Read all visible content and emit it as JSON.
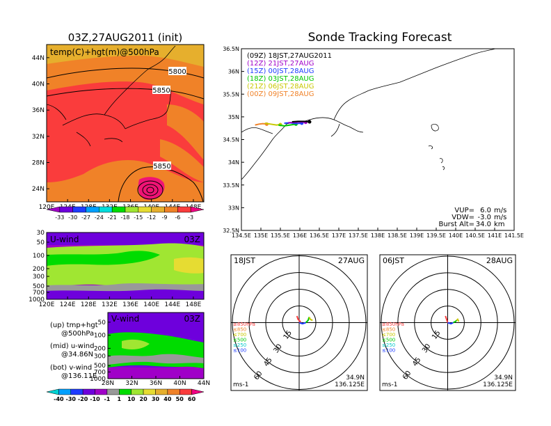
{
  "figure": {
    "title_init": "03Z,27AUG2011 (init)",
    "title_main": "Sonde Tracking Forecast"
  },
  "chart_data": [
    {
      "id": "temp-map",
      "type": "heatmap",
      "panel_label": "temp(C)+hgt(m)@500hPa",
      "x_ticks": [
        "120E",
        "124E",
        "128E",
        "132E",
        "136E",
        "140E",
        "144E",
        "148E"
      ],
      "y_ticks": [
        "24N",
        "28N",
        "32N",
        "36N",
        "40N",
        "44N"
      ],
      "xlim": [
        120,
        150
      ],
      "ylim": [
        22,
        46
      ],
      "contour_labels": [
        "5800",
        "5850",
        "5850"
      ],
      "colorbar": {
        "levels": [
          -33,
          -30,
          -27,
          -24,
          -21,
          -18,
          -15,
          -12,
          -9,
          -6,
          -3
        ],
        "tick_labels": [
          "-33",
          "-30",
          "-27",
          "-24",
          "-21",
          "-18",
          "-15",
          "-12",
          "-9",
          "-6",
          "-3"
        ],
        "colors": [
          "#a000c8",
          "#6e00dc",
          "#1e3cff",
          "#00a0ff",
          "#00dcdc",
          "#00dc00",
          "#a0e632",
          "#e6dc32",
          "#e6af2d",
          "#f08228",
          "#fa3c3c",
          "#f00082"
        ]
      }
    },
    {
      "id": "u-wind",
      "type": "heatmap",
      "panel_label": "U-wind",
      "time_label": "03Z",
      "x_ticks": [
        "120E",
        "124E",
        "128E",
        "132E",
        "136E",
        "140E",
        "144E",
        "148E"
      ],
      "y_ticks": [
        "30",
        "50",
        "100",
        "200",
        "300",
        "500",
        "700",
        "1000"
      ],
      "xlim": [
        120,
        150
      ],
      "ylim": [
        1000,
        30
      ],
      "y_scale": "log"
    },
    {
      "id": "v-wind",
      "type": "heatmap",
      "panel_label": "V-wind",
      "time_label": "03Z",
      "x_ticks": [
        "28N",
        "32N",
        "36N",
        "40N",
        "44N"
      ],
      "y_ticks": [
        "50",
        "100",
        "200",
        "300",
        "500",
        "700",
        "1000"
      ],
      "xlim": [
        28,
        44
      ],
      "ylim": [
        1000,
        30
      ],
      "y_scale": "log",
      "colorbar": {
        "tick_labels": [
          "-40",
          "-30",
          "-20",
          "-10",
          "-1",
          "1",
          "10",
          "20",
          "30",
          "40",
          "50",
          "60"
        ],
        "colors": [
          "#00d2d2",
          "#00a0ff",
          "#1e3cff",
          "#6e00dc",
          "#a000c8",
          "#999999",
          "#00dc00",
          "#a0e632",
          "#e6dc32",
          "#e6af2d",
          "#f08228",
          "#fa3c3c",
          "#f00082"
        ]
      }
    },
    {
      "id": "track-map",
      "type": "line",
      "x_ticks": [
        "134.5E",
        "135E",
        "135.5E",
        "136E",
        "136.5E",
        "137E",
        "137.5E",
        "138E",
        "138.5E",
        "139E",
        "139.5E",
        "140E",
        "140.5E",
        "141E",
        "141.5E"
      ],
      "y_ticks": [
        "32.5N",
        "33N",
        "33.5N",
        "34N",
        "34.5N",
        "35N",
        "35.5N",
        "36N",
        "36.5N"
      ],
      "xlim": [
        134.5,
        141.5
      ],
      "ylim": [
        32.5,
        36.5
      ],
      "legend": [
        {
          "label": "(09Z)  18JST,27AUG2011",
          "color": "#000000"
        },
        {
          "label": "(12Z)  21JST,27AUG",
          "color": "#a000c8"
        },
        {
          "label": "(15Z)  00JST,28AUG",
          "color": "#1e3cff"
        },
        {
          "label": "(18Z)  03JST,28AUG",
          "color": "#00c800"
        },
        {
          "label": "(21Z)  06JST,28AUG",
          "color": "#c8c800"
        },
        {
          "label": "(00Z)  09JST,28AUG",
          "color": "#f08228"
        }
      ],
      "series": [
        {
          "color": "#f08228",
          "x": [
            134.85,
            134.95,
            135.05,
            135.15
          ],
          "y": [
            34.82,
            34.84,
            34.85,
            34.84
          ]
        },
        {
          "color": "#c8c800",
          "x": [
            135.1,
            135.25,
            135.4,
            135.5
          ],
          "y": [
            34.86,
            34.84,
            34.82,
            34.83
          ]
        },
        {
          "color": "#00c800",
          "x": [
            135.45,
            135.6,
            135.75,
            135.9
          ],
          "y": [
            34.82,
            34.8,
            34.82,
            34.84
          ]
        },
        {
          "color": "#1e3cff",
          "x": [
            135.6,
            135.75,
            135.9,
            136.05
          ],
          "y": [
            34.86,
            34.87,
            34.85,
            34.86
          ]
        },
        {
          "color": "#a000c8",
          "x": [
            135.7,
            135.85,
            136.0,
            136.15
          ],
          "y": [
            34.87,
            34.88,
            34.89,
            34.88
          ]
        },
        {
          "color": "#000000",
          "x": [
            135.8,
            135.95,
            136.1,
            136.25
          ],
          "y": [
            34.89,
            34.9,
            34.9,
            34.89
          ]
        }
      ],
      "params": [
        {
          "label": "VUP=",
          "value": "6.0",
          "unit": "m/s"
        },
        {
          "label": "VDW=",
          "value": "-3.0",
          "unit": "m/s"
        },
        {
          "label": "Burst Alt=",
          "value": "34.0",
          "unit": "km"
        }
      ]
    },
    {
      "id": "hodo-1",
      "type": "line",
      "time_label": "18JST",
      "date_label": "27AUG",
      "ring_labels": [
        "15",
        "30",
        "45",
        "60"
      ],
      "legend": [
        {
          "label": "≥850hPa",
          "color": "#fa3c3c"
        },
        {
          "label": "≤850",
          "color": "#f08228"
        },
        {
          "label": "≤700",
          "color": "#c8c800"
        },
        {
          "label": "≤500",
          "color": "#00c800"
        },
        {
          "label": "≤250",
          "color": "#00c8c8"
        },
        {
          "label": "≤100",
          "color": "#1e3cff"
        }
      ],
      "units": "ms-1",
      "location": [
        "34.9N",
        "136.125E"
      ],
      "series": [
        {
          "color": "#fa3c3c",
          "u": [
            -2,
            -1,
            1,
            0
          ],
          "v": [
            6,
            3,
            1,
            0
          ]
        },
        {
          "color": "#1e3cff",
          "u": [
            0,
            3,
            6
          ],
          "v": [
            0,
            -1,
            0
          ]
        },
        {
          "color": "#00c800",
          "u": [
            6,
            8,
            9
          ],
          "v": [
            0,
            2,
            5
          ]
        },
        {
          "color": "#c8c800",
          "u": [
            9,
            10,
            12
          ],
          "v": [
            5,
            3,
            2
          ]
        }
      ]
    },
    {
      "id": "hodo-2",
      "type": "line",
      "time_label": "06JST",
      "date_label": "28AUG",
      "ring_labels": [
        "15",
        "30",
        "45",
        "60"
      ],
      "legend": [
        {
          "label": "≥850hPa",
          "color": "#fa3c3c"
        },
        {
          "label": "≤850",
          "color": "#f08228"
        },
        {
          "label": "≤700",
          "color": "#c8c800"
        },
        {
          "label": "≤500",
          "color": "#00c800"
        },
        {
          "label": "≤250",
          "color": "#00c8c8"
        },
        {
          "label": "≤100",
          "color": "#1e3cff"
        }
      ],
      "units": "ms-1",
      "location": [
        "34.9N",
        "136.125E"
      ],
      "series": [
        {
          "color": "#fa3c3c",
          "u": [
            -2,
            -1,
            0
          ],
          "v": [
            6,
            3,
            0
          ]
        },
        {
          "color": "#1e3cff",
          "u": [
            0,
            3,
            5
          ],
          "v": [
            0,
            -1,
            0
          ]
        },
        {
          "color": "#00c800",
          "u": [
            5,
            7,
            8
          ],
          "v": [
            0,
            1,
            2
          ]
        },
        {
          "color": "#c8c800",
          "u": [
            8,
            9,
            10
          ],
          "v": [
            2,
            3,
            1
          ]
        }
      ]
    }
  ],
  "side_legend": {
    "up_line1": "(up) tmp+hgt",
    "up_line2": "@500hPa",
    "mid_line1": "(mid) u-wind",
    "mid_line2": "@34.86N",
    "bot_line1": "(bot) v-wind",
    "bot_line2": "@136.11E"
  }
}
